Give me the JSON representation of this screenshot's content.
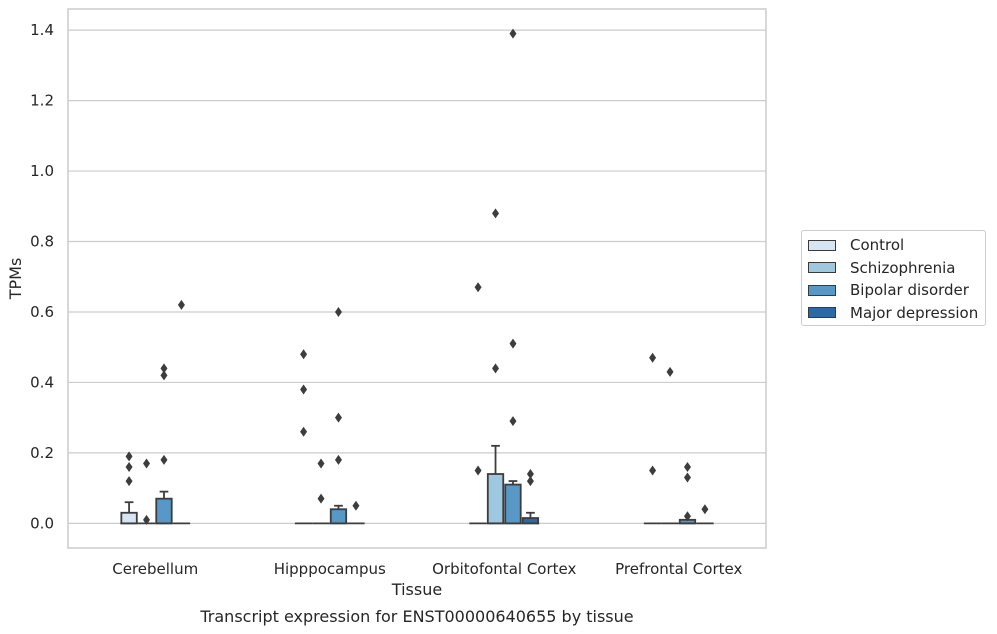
{
  "chart_data": {
    "type": "box",
    "xlabel": "Tissue",
    "ylabel": "TPMs",
    "caption": "Transcript expression for ENST00000640655 by tissue",
    "ylim": [
      -0.07,
      1.46
    ],
    "yticks": [
      "0.0",
      "0.2",
      "0.4",
      "0.6",
      "0.8",
      "1.0",
      "1.2",
      "1.4"
    ],
    "ytick_values": [
      0,
      0.2,
      0.4,
      0.6,
      0.8,
      1.0,
      1.2,
      1.4
    ],
    "grid": "horizontal",
    "legend_position": "right",
    "categories": [
      "Cerebellum",
      "Hipppocampus",
      "Orbitofontal Cortex",
      "Prefrontal Cortex"
    ],
    "series": [
      {
        "name": "Control",
        "color": "#d6e5f3",
        "boxes": [
          {
            "q1": 0,
            "median": 0,
            "q3": 0.03,
            "whisker_low": 0,
            "whisker_high": 0.06,
            "outliers": [
              0.12,
              0.16,
              0.19
            ]
          },
          {
            "q1": 0,
            "median": 0,
            "q3": 0,
            "whisker_low": 0,
            "whisker_high": 0,
            "outliers": [
              0.26,
              0.38,
              0.48
            ]
          },
          {
            "q1": 0,
            "median": 0,
            "q3": 0,
            "whisker_low": 0,
            "whisker_high": 0,
            "outliers": [
              0.15,
              0.67
            ]
          },
          {
            "q1": 0,
            "median": 0,
            "q3": 0,
            "whisker_low": 0,
            "whisker_high": 0,
            "outliers": [
              0.15,
              0.47
            ]
          }
        ]
      },
      {
        "name": "Schizophrenia",
        "color": "#9ec7e0",
        "boxes": [
          {
            "q1": 0,
            "median": 0,
            "q3": 0,
            "whisker_low": 0,
            "whisker_high": 0,
            "outliers": [
              0.01,
              0.17
            ]
          },
          {
            "q1": 0,
            "median": 0,
            "q3": 0,
            "whisker_low": 0,
            "whisker_high": 0,
            "outliers": [
              0.07,
              0.17
            ]
          },
          {
            "q1": 0,
            "median": 0,
            "q3": 0.14,
            "whisker_low": 0,
            "whisker_high": 0.22,
            "outliers": [
              0.44,
              0.88
            ]
          },
          {
            "q1": 0,
            "median": 0,
            "q3": 0,
            "whisker_low": 0,
            "whisker_high": 0,
            "outliers": [
              0.43
            ]
          }
        ]
      },
      {
        "name": "Bipolar disorder",
        "color": "#5798c7",
        "boxes": [
          {
            "q1": 0,
            "median": 0,
            "q3": 0.07,
            "whisker_low": 0,
            "whisker_high": 0.09,
            "outliers": [
              0.18,
              0.42,
              0.44
            ]
          },
          {
            "q1": 0,
            "median": 0,
            "q3": 0.04,
            "whisker_low": 0,
            "whisker_high": 0.05,
            "outliers": [
              0.18,
              0.3,
              0.6
            ]
          },
          {
            "q1": 0,
            "median": 0,
            "q3": 0.11,
            "whisker_low": 0,
            "whisker_high": 0.12,
            "outliers": [
              0.29,
              0.51,
              1.39
            ]
          },
          {
            "q1": 0,
            "median": 0,
            "q3": 0.01,
            "whisker_low": 0,
            "whisker_high": 0.01,
            "outliers": [
              0.02,
              0.13,
              0.16
            ]
          }
        ]
      },
      {
        "name": "Major depression",
        "color": "#2c6aa5",
        "boxes": [
          {
            "q1": 0,
            "median": 0,
            "q3": 0,
            "whisker_low": 0,
            "whisker_high": 0,
            "outliers": [
              0.62
            ]
          },
          {
            "q1": 0,
            "median": 0,
            "q3": 0,
            "whisker_low": 0,
            "whisker_high": 0,
            "outliers": [
              0.05
            ]
          },
          {
            "q1": 0,
            "median": 0,
            "q3": 0.015,
            "whisker_low": 0,
            "whisker_high": 0.03,
            "outliers": [
              0.12,
              0.14
            ]
          },
          {
            "q1": 0,
            "median": 0,
            "q3": 0,
            "whisker_low": 0,
            "whisker_high": 0,
            "outliers": [
              0.04
            ]
          }
        ]
      }
    ]
  }
}
